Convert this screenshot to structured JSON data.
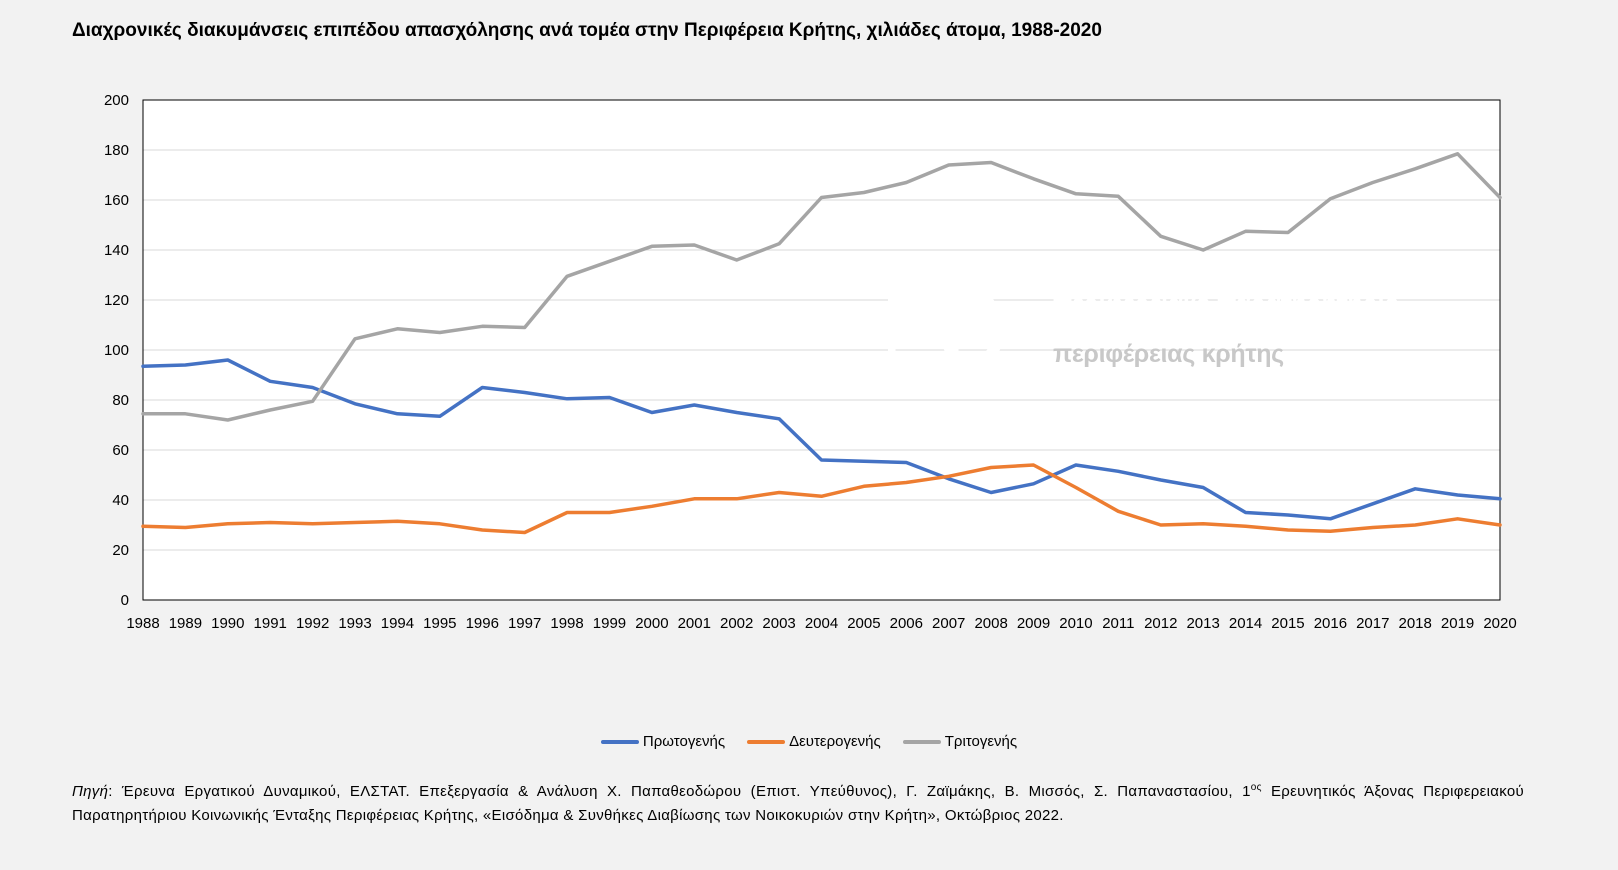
{
  "title": "Διαχρονικές διακυμάνσεις επιπέδου απασχόλησης ανά τομέα στην Περιφέρεια Κρήτης, χιλιάδες άτομα, 1988-2020",
  "watermark": {
    "line1": "περιφερειακό παρατηρητήριο",
    "line2": "κοινωνικής ένταξης",
    "line3": "περιφέρειας κρήτης"
  },
  "source": {
    "label": "Πηγή",
    "text1": ": Έρευνα Εργατικού Δυναμικού, ΕΛΣΤΑΤ.  Επεξεργασία & Ανάλυση Χ. Παπαθεοδώρου (Επιστ. Υπεύθυνος), Γ. Ζαϊμάκης, Β. Μισσός, Σ. Παπαναστασίου, 1",
    "sup": "ος",
    "text2": " Ερευνητικός Άξονας Περιφερειακού Παρατηρητήριου Κοινωνικής Ένταξης Περιφέρειας Κρήτης, «Εισόδημα & Συνθήκες Διαβίωσης των Νοικοκυριών στην Κρήτη», Οκτώβριος 2022."
  },
  "chart_data": {
    "type": "line",
    "title": "Διαχρονικές διακυμάνσεις επιπέδου απασχόλησης ανά τομέα στην Περιφέρεια Κρήτης, χιλιάδες άτομα, 1988-2020",
    "xlabel": "",
    "ylabel": "",
    "ylim": [
      0,
      200
    ],
    "yticks": [
      0,
      20,
      40,
      60,
      80,
      100,
      120,
      140,
      160,
      180,
      200
    ],
    "grid": true,
    "legend_position": "bottom",
    "x": [
      "1988",
      "1989",
      "1990",
      "1991",
      "1992",
      "1993",
      "1994",
      "1995",
      "1996",
      "1997",
      "1998",
      "1999",
      "2000",
      "2001",
      "2002",
      "2003",
      "2004",
      "2005",
      "2006",
      "2007",
      "2008",
      "2009",
      "2010",
      "2011",
      "2012",
      "2013",
      "2014",
      "2015",
      "2016",
      "2017",
      "2018",
      "2019",
      "2020"
    ],
    "series": [
      {
        "name": "Πρωτογενής",
        "color": "#4472c4",
        "values": [
          93.5,
          94,
          96,
          87.5,
          85,
          78.5,
          74.5,
          73.5,
          85,
          83,
          80.5,
          81,
          75,
          78,
          75,
          72.5,
          56,
          55.5,
          55,
          48.5,
          43,
          46.5,
          54,
          51.5,
          48,
          45,
          35,
          34,
          32.5,
          38.5,
          44.5,
          42,
          40.5
        ]
      },
      {
        "name": "Δευτερογενής",
        "color": "#ed7d31",
        "values": [
          29.5,
          29,
          30.5,
          31,
          30.5,
          31,
          31.5,
          30.5,
          28,
          27,
          35,
          35,
          37.5,
          40.5,
          40.5,
          43,
          41.5,
          45.5,
          47,
          49.5,
          53,
          54,
          45,
          35.5,
          30,
          30.5,
          29.5,
          28,
          27.5,
          29,
          30,
          32.5,
          30
        ]
      },
      {
        "name": "Τριτογενής",
        "color": "#a5a5a5",
        "values": [
          74.5,
          74.5,
          72,
          76,
          79.5,
          104.5,
          108.5,
          107,
          109.5,
          109,
          129.5,
          135.5,
          141.5,
          142,
          136,
          142.5,
          161,
          163,
          167,
          174,
          175,
          168.5,
          162.5,
          161.5,
          145.5,
          140,
          147.5,
          147,
          160.5,
          167,
          172.5,
          178.5,
          161
        ]
      }
    ]
  }
}
